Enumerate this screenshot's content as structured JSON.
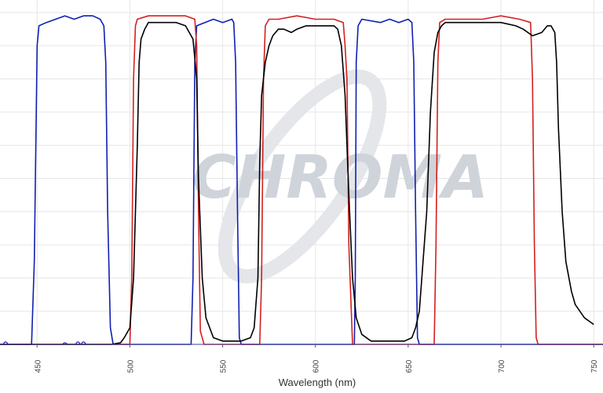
{
  "chart_data": {
    "type": "line",
    "title": "",
    "xlabel": "Wavelength (nm)",
    "ylabel": "",
    "xlim": [
      430,
      755
    ],
    "ylim": [
      0,
      100
    ],
    "grid": true,
    "x_ticks": [
      450,
      500,
      550,
      600,
      650,
      700,
      750
    ],
    "watermark": "CHROMA",
    "series": [
      {
        "color": "#1020b0",
        "points": [
          [
            430,
            0
          ],
          [
            447,
            0
          ],
          [
            448.5,
            25
          ],
          [
            450,
            90
          ],
          [
            451,
            96
          ],
          [
            455,
            97
          ],
          [
            460,
            98
          ],
          [
            465,
            99
          ],
          [
            470,
            98
          ],
          [
            475,
            99
          ],
          [
            480,
            99
          ],
          [
            484,
            98
          ],
          [
            486,
            96
          ],
          [
            487,
            85
          ],
          [
            488,
            40
          ],
          [
            489.5,
            5
          ],
          [
            491,
            0
          ],
          [
            533,
            0
          ],
          [
            534,
            20
          ],
          [
            535,
            85
          ],
          [
            536,
            96
          ],
          [
            545,
            98
          ],
          [
            550,
            97
          ],
          [
            555,
            98
          ],
          [
            556,
            97
          ],
          [
            557,
            85
          ],
          [
            558,
            40
          ],
          [
            559,
            2
          ],
          [
            560,
            0
          ],
          [
            621,
            0
          ],
          [
            621.5,
            20
          ],
          [
            622,
            85
          ],
          [
            623,
            96
          ],
          [
            625,
            98
          ],
          [
            635,
            97
          ],
          [
            640,
            98
          ],
          [
            645,
            97
          ],
          [
            650,
            98
          ],
          [
            652,
            97
          ],
          [
            653,
            85
          ],
          [
            654,
            40
          ],
          [
            655,
            2
          ],
          [
            656,
            0
          ],
          [
            755,
            0
          ]
        ],
        "minor_blips": [
          [
            433,
            1
          ],
          [
            465,
            0.5
          ],
          [
            472,
            1
          ],
          [
            475,
            1
          ]
        ]
      },
      {
        "color": "#d42020",
        "points": [
          [
            430,
            0
          ],
          [
            500,
            0
          ],
          [
            501,
            20
          ],
          [
            502,
            80
          ],
          [
            503,
            96
          ],
          [
            504,
            98
          ],
          [
            510,
            99
          ],
          [
            515,
            99
          ],
          [
            520,
            99
          ],
          [
            530,
            99
          ],
          [
            535,
            98
          ],
          [
            536,
            90
          ],
          [
            537,
            40
          ],
          [
            538,
            4
          ],
          [
            540,
            0
          ],
          [
            570,
            0
          ],
          [
            571,
            20
          ],
          [
            572,
            80
          ],
          [
            573,
            96
          ],
          [
            575,
            98
          ],
          [
            580,
            98
          ],
          [
            590,
            99
          ],
          [
            600,
            98
          ],
          [
            610,
            98
          ],
          [
            615,
            97
          ],
          [
            616,
            90
          ],
          [
            617,
            80
          ],
          [
            618,
            30
          ],
          [
            620,
            0
          ],
          [
            664,
            0
          ],
          [
            665,
            30
          ],
          [
            666,
            85
          ],
          [
            667,
            97
          ],
          [
            670,
            98
          ],
          [
            680,
            98
          ],
          [
            690,
            98
          ],
          [
            700,
            99
          ],
          [
            710,
            98
          ],
          [
            716,
            97
          ],
          [
            717,
            80
          ],
          [
            718,
            30
          ],
          [
            719,
            2
          ],
          [
            720,
            0
          ],
          [
            755,
            0
          ]
        ]
      },
      {
        "color": "#000000",
        "points": [
          [
            430,
            0
          ],
          [
            490,
            0
          ],
          [
            495,
            0.5
          ],
          [
            497,
            2
          ],
          [
            500,
            5
          ],
          [
            502,
            20
          ],
          [
            504,
            60
          ],
          [
            505,
            85
          ],
          [
            506,
            92
          ],
          [
            508,
            95
          ],
          [
            510,
            97
          ],
          [
            515,
            97
          ],
          [
            520,
            97
          ],
          [
            525,
            97
          ],
          [
            530,
            96
          ],
          [
            534,
            92
          ],
          [
            536,
            80
          ],
          [
            537,
            50
          ],
          [
            539,
            20
          ],
          [
            541,
            8
          ],
          [
            545,
            2
          ],
          [
            550,
            1
          ],
          [
            560,
            1
          ],
          [
            565,
            2
          ],
          [
            567,
            5
          ],
          [
            569,
            20
          ],
          [
            570,
            55
          ],
          [
            571,
            75
          ],
          [
            573,
            85
          ],
          [
            575,
            90
          ],
          [
            577,
            93
          ],
          [
            580,
            95
          ],
          [
            583,
            95
          ],
          [
            587,
            94
          ],
          [
            590,
            95
          ],
          [
            595,
            96
          ],
          [
            600,
            96
          ],
          [
            605,
            96
          ],
          [
            610,
            96
          ],
          [
            612,
            95
          ],
          [
            614,
            90
          ],
          [
            616,
            75
          ],
          [
            618,
            45
          ],
          [
            620,
            20
          ],
          [
            622,
            8
          ],
          [
            625,
            3
          ],
          [
            630,
            1
          ],
          [
            640,
            1
          ],
          [
            648,
            1
          ],
          [
            652,
            2
          ],
          [
            654,
            5
          ],
          [
            656,
            10
          ],
          [
            660,
            40
          ],
          [
            662,
            70
          ],
          [
            664,
            88
          ],
          [
            666,
            94
          ],
          [
            668,
            96
          ],
          [
            670,
            97
          ],
          [
            680,
            97
          ],
          [
            690,
            97
          ],
          [
            700,
            97
          ],
          [
            708,
            96
          ],
          [
            712,
            95
          ],
          [
            717,
            93
          ],
          [
            722,
            94
          ],
          [
            725,
            96
          ],
          [
            727,
            96
          ],
          [
            729,
            94
          ],
          [
            730,
            85
          ],
          [
            731,
            65
          ],
          [
            733,
            40
          ],
          [
            735,
            25
          ],
          [
            738,
            16
          ],
          [
            740,
            12
          ],
          [
            745,
            8
          ],
          [
            750,
            6
          ]
        ]
      }
    ]
  }
}
